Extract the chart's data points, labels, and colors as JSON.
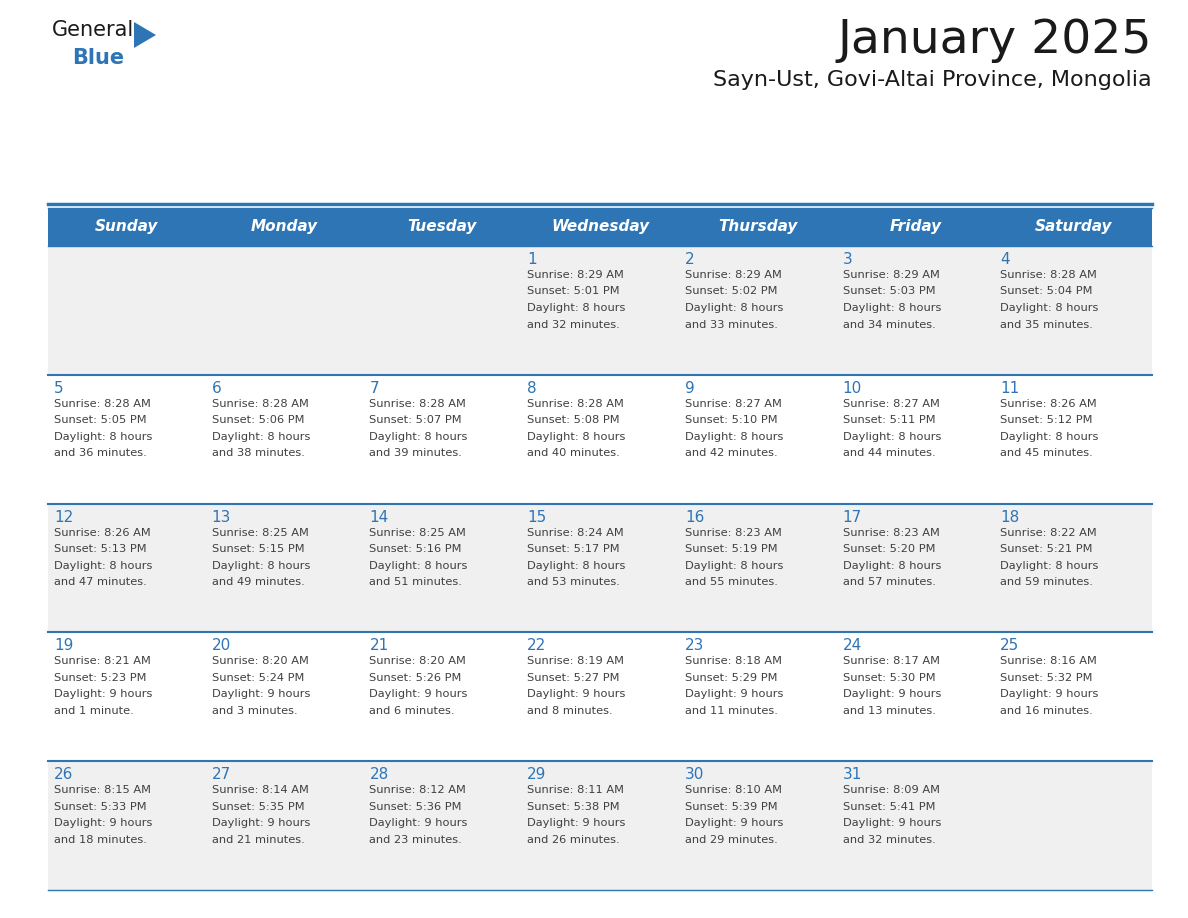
{
  "title": "January 2025",
  "subtitle": "Sayn-Ust, Govi-Altai Province, Mongolia",
  "days_of_week": [
    "Sunday",
    "Monday",
    "Tuesday",
    "Wednesday",
    "Thursday",
    "Friday",
    "Saturday"
  ],
  "header_bg": "#2E75B6",
  "header_text": "#FFFFFF",
  "row_bg_even": "#F0F0F0",
  "row_bg_odd": "#FFFFFF",
  "day_number_color": "#2E75B6",
  "cell_text_color": "#404040",
  "separator_color": "#2E75B6",
  "title_color": "#1A1A1A",
  "subtitle_color": "#1A1A1A",
  "weeks": [
    [
      {
        "day": null,
        "sunrise": null,
        "sunset": null,
        "daylight": null
      },
      {
        "day": null,
        "sunrise": null,
        "sunset": null,
        "daylight": null
      },
      {
        "day": null,
        "sunrise": null,
        "sunset": null,
        "daylight": null
      },
      {
        "day": 1,
        "sunrise": "8:29 AM",
        "sunset": "5:01 PM",
        "daylight": "8 hours and 32 minutes."
      },
      {
        "day": 2,
        "sunrise": "8:29 AM",
        "sunset": "5:02 PM",
        "daylight": "8 hours and 33 minutes."
      },
      {
        "day": 3,
        "sunrise": "8:29 AM",
        "sunset": "5:03 PM",
        "daylight": "8 hours and 34 minutes."
      },
      {
        "day": 4,
        "sunrise": "8:28 AM",
        "sunset": "5:04 PM",
        "daylight": "8 hours and 35 minutes."
      }
    ],
    [
      {
        "day": 5,
        "sunrise": "8:28 AM",
        "sunset": "5:05 PM",
        "daylight": "8 hours and 36 minutes."
      },
      {
        "day": 6,
        "sunrise": "8:28 AM",
        "sunset": "5:06 PM",
        "daylight": "8 hours and 38 minutes."
      },
      {
        "day": 7,
        "sunrise": "8:28 AM",
        "sunset": "5:07 PM",
        "daylight": "8 hours and 39 minutes."
      },
      {
        "day": 8,
        "sunrise": "8:28 AM",
        "sunset": "5:08 PM",
        "daylight": "8 hours and 40 minutes."
      },
      {
        "day": 9,
        "sunrise": "8:27 AM",
        "sunset": "5:10 PM",
        "daylight": "8 hours and 42 minutes."
      },
      {
        "day": 10,
        "sunrise": "8:27 AM",
        "sunset": "5:11 PM",
        "daylight": "8 hours and 44 minutes."
      },
      {
        "day": 11,
        "sunrise": "8:26 AM",
        "sunset": "5:12 PM",
        "daylight": "8 hours and 45 minutes."
      }
    ],
    [
      {
        "day": 12,
        "sunrise": "8:26 AM",
        "sunset": "5:13 PM",
        "daylight": "8 hours and 47 minutes."
      },
      {
        "day": 13,
        "sunrise": "8:25 AM",
        "sunset": "5:15 PM",
        "daylight": "8 hours and 49 minutes."
      },
      {
        "day": 14,
        "sunrise": "8:25 AM",
        "sunset": "5:16 PM",
        "daylight": "8 hours and 51 minutes."
      },
      {
        "day": 15,
        "sunrise": "8:24 AM",
        "sunset": "5:17 PM",
        "daylight": "8 hours and 53 minutes."
      },
      {
        "day": 16,
        "sunrise": "8:23 AM",
        "sunset": "5:19 PM",
        "daylight": "8 hours and 55 minutes."
      },
      {
        "day": 17,
        "sunrise": "8:23 AM",
        "sunset": "5:20 PM",
        "daylight": "8 hours and 57 minutes."
      },
      {
        "day": 18,
        "sunrise": "8:22 AM",
        "sunset": "5:21 PM",
        "daylight": "8 hours and 59 minutes."
      }
    ],
    [
      {
        "day": 19,
        "sunrise": "8:21 AM",
        "sunset": "5:23 PM",
        "daylight": "9 hours and 1 minute."
      },
      {
        "day": 20,
        "sunrise": "8:20 AM",
        "sunset": "5:24 PM",
        "daylight": "9 hours and 3 minutes."
      },
      {
        "day": 21,
        "sunrise": "8:20 AM",
        "sunset": "5:26 PM",
        "daylight": "9 hours and 6 minutes."
      },
      {
        "day": 22,
        "sunrise": "8:19 AM",
        "sunset": "5:27 PM",
        "daylight": "9 hours and 8 minutes."
      },
      {
        "day": 23,
        "sunrise": "8:18 AM",
        "sunset": "5:29 PM",
        "daylight": "9 hours and 11 minutes."
      },
      {
        "day": 24,
        "sunrise": "8:17 AM",
        "sunset": "5:30 PM",
        "daylight": "9 hours and 13 minutes."
      },
      {
        "day": 25,
        "sunrise": "8:16 AM",
        "sunset": "5:32 PM",
        "daylight": "9 hours and 16 minutes."
      }
    ],
    [
      {
        "day": 26,
        "sunrise": "8:15 AM",
        "sunset": "5:33 PM",
        "daylight": "9 hours and 18 minutes."
      },
      {
        "day": 27,
        "sunrise": "8:14 AM",
        "sunset": "5:35 PM",
        "daylight": "9 hours and 21 minutes."
      },
      {
        "day": 28,
        "sunrise": "8:12 AM",
        "sunset": "5:36 PM",
        "daylight": "9 hours and 23 minutes."
      },
      {
        "day": 29,
        "sunrise": "8:11 AM",
        "sunset": "5:38 PM",
        "daylight": "9 hours and 26 minutes."
      },
      {
        "day": 30,
        "sunrise": "8:10 AM",
        "sunset": "5:39 PM",
        "daylight": "9 hours and 29 minutes."
      },
      {
        "day": 31,
        "sunrise": "8:09 AM",
        "sunset": "5:41 PM",
        "daylight": "9 hours and 32 minutes."
      },
      {
        "day": null,
        "sunrise": null,
        "sunset": null,
        "daylight": null
      }
    ]
  ],
  "logo_text_general": "General",
  "logo_text_blue": "Blue",
  "logo_triangle_color": "#2E75B6",
  "logo_general_color": "#1A1A1A"
}
